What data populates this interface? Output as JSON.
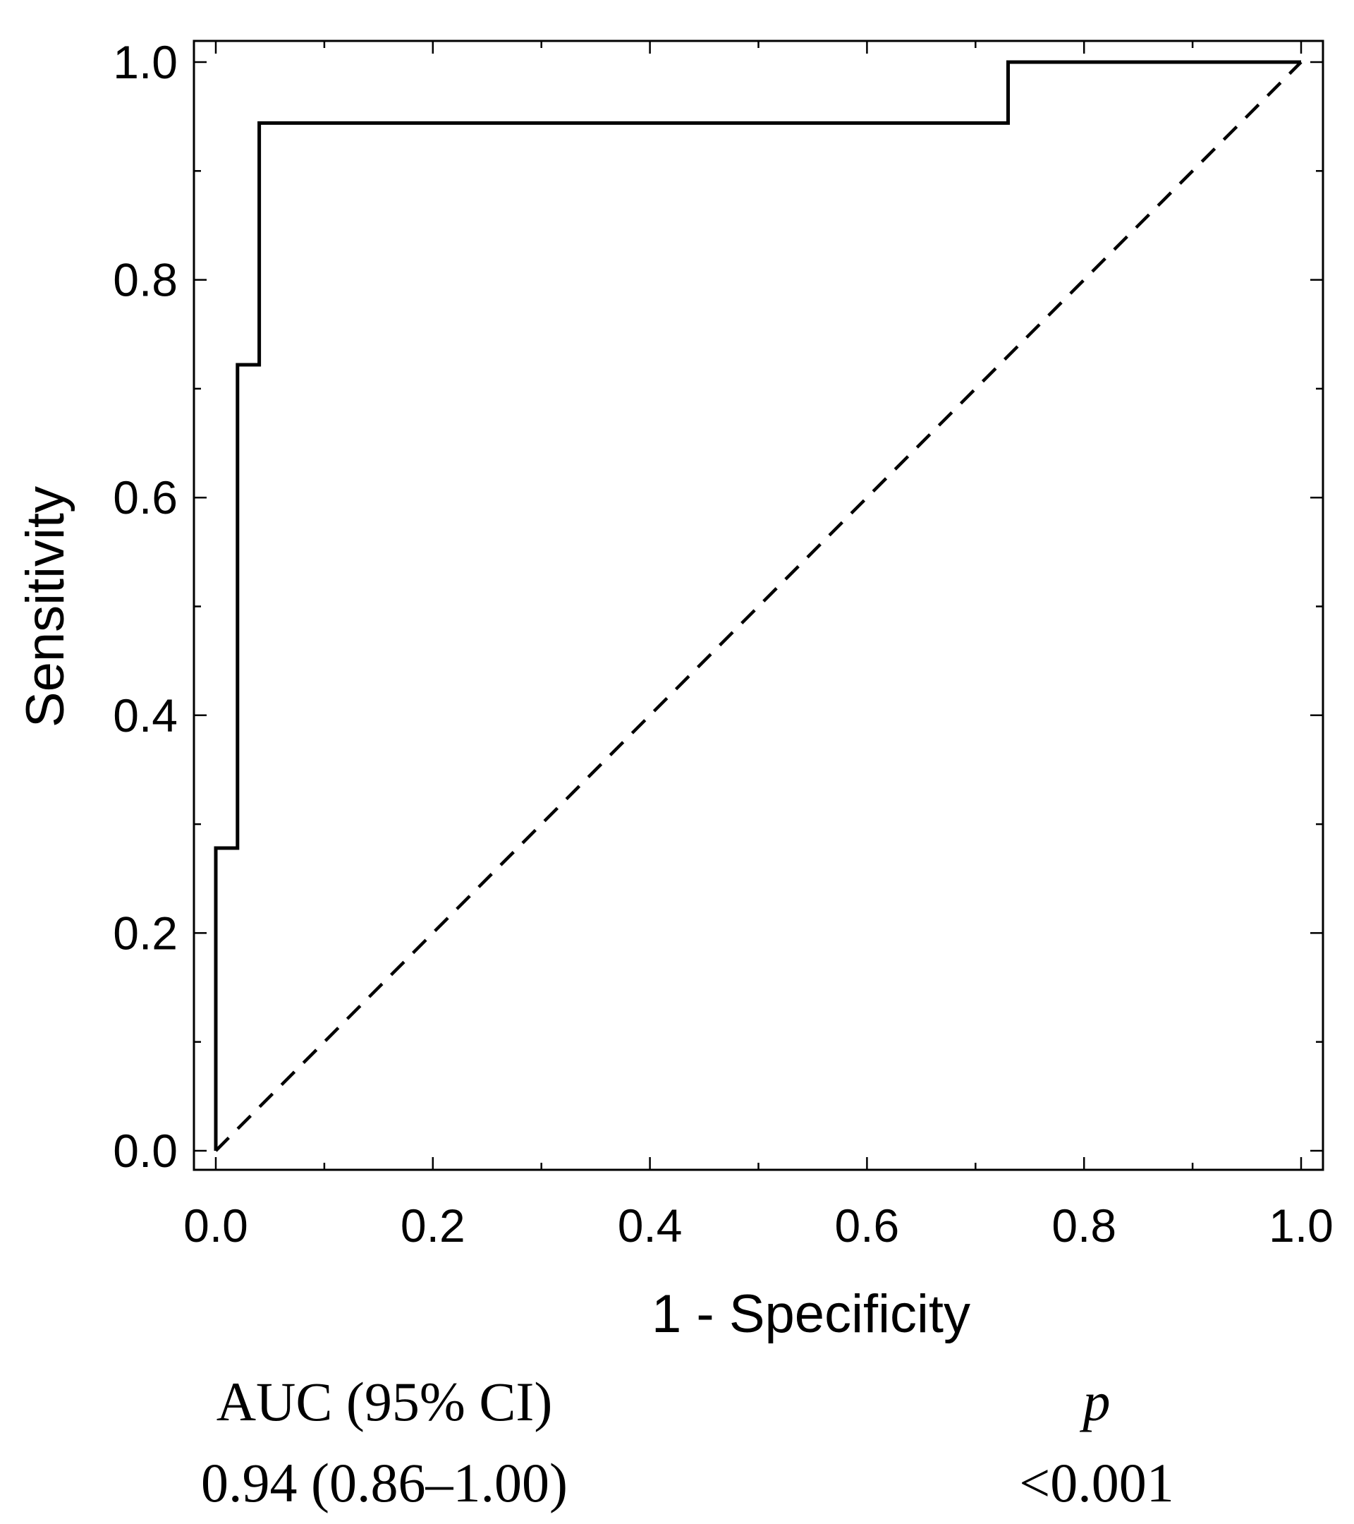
{
  "chart_data": {
    "type": "line",
    "xlabel": "1 - Specificity",
    "ylabel": "Sensitivity",
    "xlim": [
      0.0,
      1.0
    ],
    "ylim": [
      0.0,
      1.0
    ],
    "x_ticks": [
      "0.0",
      "0.2",
      "0.4",
      "0.6",
      "0.8",
      "1.0"
    ],
    "y_ticks": [
      "0.0",
      "0.2",
      "0.4",
      "0.6",
      "0.8",
      "1.0"
    ],
    "x_tick_values": [
      0.0,
      0.2,
      0.4,
      0.6,
      0.8,
      1.0
    ],
    "y_tick_values": [
      0.0,
      0.2,
      0.4,
      0.6,
      0.8,
      1.0
    ],
    "minor_tick_step": 0.1,
    "grid": false,
    "legend": "none",
    "series": [
      {
        "style": "solid-step",
        "color": "#000000",
        "points": [
          [
            0.0,
            0.0
          ],
          [
            0.0,
            0.278
          ],
          [
            0.02,
            0.278
          ],
          [
            0.02,
            0.722
          ],
          [
            0.04,
            0.722
          ],
          [
            0.04,
            0.944
          ],
          [
            0.73,
            0.944
          ],
          [
            0.73,
            1.0
          ],
          [
            1.0,
            1.0
          ]
        ]
      },
      {
        "style": "dashed-reference",
        "color": "#000000",
        "points": [
          [
            0.0,
            0.0
          ],
          [
            1.0,
            1.0
          ]
        ]
      }
    ]
  },
  "stats": {
    "auc_header": "AUC (95% CI)",
    "p_header": "p",
    "auc_value": "0.94 (0.86–1.00)",
    "p_value": "<0.001"
  }
}
